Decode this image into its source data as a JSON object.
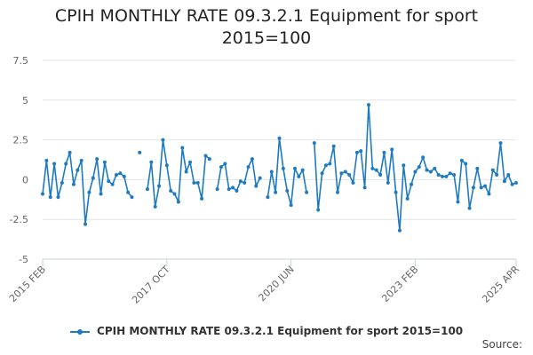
{
  "chart_data": {
    "type": "line",
    "title_line1": "CPIH MONTHLY RATE 09.3.2.1 Equipment for sport",
    "title_line2": "2015=100",
    "xlabel": "",
    "ylabel": "",
    "ylim": [
      -5,
      7.5
    ],
    "yticks": [
      "7.5",
      "5",
      "2.5",
      "0",
      "-2.5",
      "-5"
    ],
    "ytick_values": [
      7.5,
      5,
      2.5,
      0,
      -2.5,
      -5
    ],
    "xticks": [
      {
        "label": "2015 FEB",
        "index": 0
      },
      {
        "label": "2017 OCT",
        "index": 32
      },
      {
        "label": "2020 JUN",
        "index": 64
      },
      {
        "label": "2023 FEB",
        "index": 96
      },
      {
        "label": "2025 APR",
        "index": 122
      }
    ],
    "grid": true,
    "legend_position": "bottom",
    "series": [
      {
        "name": "CPIH MONTHLY RATE 09.3.2.1 Equipment for sport 2015=100",
        "color": "#1f7bbf",
        "values": [
          -0.9,
          1.2,
          -1.1,
          1.0,
          -1.1,
          -0.2,
          1.0,
          1.7,
          -0.3,
          0.6,
          1.2,
          -2.8,
          -0.8,
          0.1,
          1.3,
          -0.9,
          1.1,
          -0.1,
          -0.3,
          0.3,
          0.4,
          0.2,
          -0.8,
          -1.1,
          null,
          1.7,
          null,
          -0.6,
          1.1,
          -1.7,
          -0.4,
          2.5,
          0.9,
          -0.7,
          -0.9,
          -1.4,
          2.0,
          0.5,
          1.1,
          -0.2,
          -0.2,
          -1.2,
          1.5,
          1.3,
          null,
          -0.6,
          0.8,
          1.0,
          -0.6,
          -0.5,
          -0.7,
          -0.1,
          -0.2,
          0.8,
          1.3,
          -0.4,
          0.1,
          null,
          -1.1,
          0.5,
          -0.8,
          2.6,
          0.7,
          -0.7,
          -1.6,
          0.7,
          0.2,
          0.6,
          -0.8,
          null,
          2.3,
          -1.9,
          0.4,
          0.9,
          1.0,
          2.1,
          -0.8,
          0.4,
          0.5,
          0.3,
          -0.2,
          1.7,
          1.8,
          -0.5,
          4.7,
          0.7,
          0.6,
          0.3,
          1.7,
          -0.2,
          1.9,
          -0.8,
          -3.2,
          0.9,
          -1.2,
          -0.3,
          0.5,
          0.8,
          1.4,
          0.6,
          0.5,
          0.7,
          0.3,
          0.2,
          0.2,
          0.4,
          0.3,
          -1.4,
          1.2,
          1.0,
          -1.8,
          -0.5,
          0.7,
          -0.5,
          -0.4,
          -0.9,
          0.6,
          0.3,
          2.3,
          -0.1,
          0.3,
          -0.3,
          -0.2
        ]
      }
    ]
  },
  "legend_label": "CPIH MONTHLY RATE 09.3.2.1 Equipment for sport 2015=100",
  "source_label": "Source:"
}
